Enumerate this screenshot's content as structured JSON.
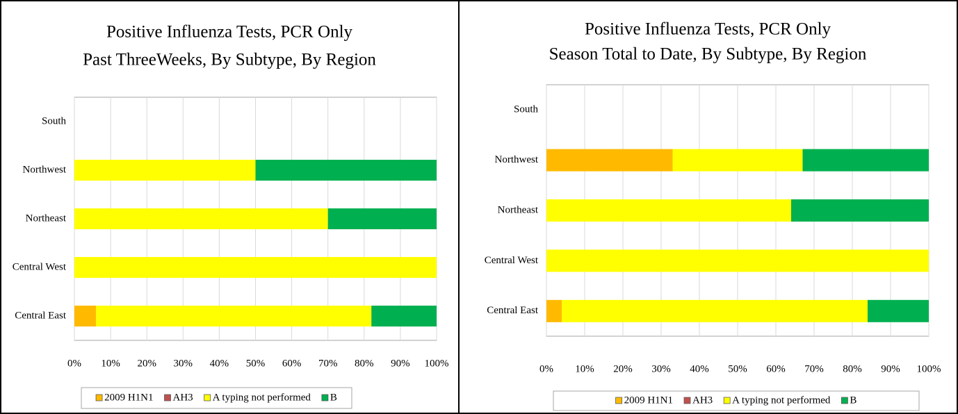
{
  "chart_data": [
    {
      "type": "stacked-bar-horizontal",
      "title": "Positive Influenza Tests, PCR Only",
      "subtitle": "Past ThreeWeeks, By Subtype, By Region",
      "categories": [
        "South",
        "Northwest",
        "Northeast",
        "Central West",
        "Central East"
      ],
      "series": [
        {
          "name": "2009 H1N1",
          "color": "#FFBA00",
          "values": [
            0,
            0,
            0,
            0,
            6
          ]
        },
        {
          "name": "AH3",
          "color": "#C0504D",
          "values": [
            0,
            0,
            0,
            0,
            0
          ]
        },
        {
          "name": "A typing not performed",
          "color": "#FFFF00",
          "values": [
            0,
            50,
            70,
            100,
            76
          ]
        },
        {
          "name": "B",
          "color": "#00B050",
          "values": [
            0,
            50,
            30,
            0,
            18
          ]
        }
      ],
      "xlim": [
        0,
        100
      ],
      "xticks": [
        {
          "value": 0,
          "label": "0%"
        },
        {
          "value": 10,
          "label": "10%"
        },
        {
          "value": 20,
          "label": "20%"
        },
        {
          "value": 30,
          "label": "30%"
        },
        {
          "value": 40,
          "label": "40%"
        },
        {
          "value": 50,
          "label": "50%"
        },
        {
          "value": 60,
          "label": "60%"
        },
        {
          "value": 70,
          "label": "70%"
        },
        {
          "value": 80,
          "label": "80%"
        },
        {
          "value": 90,
          "label": "90%"
        },
        {
          "value": 100,
          "label": "100%"
        }
      ],
      "grid": true,
      "legend": "bottom"
    },
    {
      "type": "stacked-bar-horizontal",
      "title": "Positive Influenza Tests, PCR Only",
      "subtitle": "Season Total to Date, By Subtype, By Region",
      "categories": [
        "South",
        "Northwest",
        "Northeast",
        "Central West",
        "Central East"
      ],
      "series": [
        {
          "name": "2009 H1N1",
          "color": "#FFBA00",
          "values": [
            0,
            33,
            0,
            0,
            4
          ]
        },
        {
          "name": "AH3",
          "color": "#C0504D",
          "values": [
            0,
            0,
            0,
            0,
            0
          ]
        },
        {
          "name": "A typing not performed",
          "color": "#FFFF00",
          "values": [
            0,
            34,
            64,
            100,
            80
          ]
        },
        {
          "name": "B",
          "color": "#00B050",
          "values": [
            0,
            33,
            36,
            0,
            16
          ]
        }
      ],
      "xlim": [
        0,
        100
      ],
      "xticks": [
        {
          "value": 0,
          "label": "0%"
        },
        {
          "value": 10,
          "label": "10%"
        },
        {
          "value": 20,
          "label": "20%"
        },
        {
          "value": 30,
          "label": "30%"
        },
        {
          "value": 40,
          "label": "40%"
        },
        {
          "value": 50,
          "label": "50%"
        },
        {
          "value": 60,
          "label": "60%"
        },
        {
          "value": 70,
          "label": "70%"
        },
        {
          "value": 80,
          "label": "80%"
        },
        {
          "value": 90,
          "label": "90%"
        },
        {
          "value": 100,
          "label": "100%"
        }
      ],
      "grid": true,
      "legend": "bottom"
    }
  ]
}
